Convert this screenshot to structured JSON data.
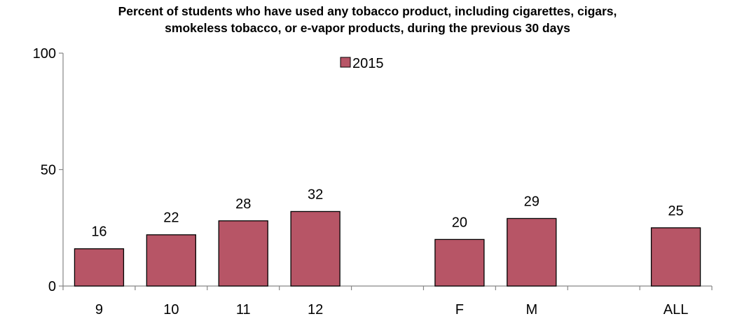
{
  "chart_data": {
    "type": "bar",
    "title_lines": [
      "Percent of students who have used any tobacco product, including cigarettes, cigars,",
      "smokeless tobacco, or e-vapor products, during the previous 30 days"
    ],
    "categories": [
      "9",
      "10",
      "11",
      "12",
      "",
      "F",
      "M",
      "",
      "ALL"
    ],
    "series": [
      {
        "name": "2015",
        "values": [
          16,
          22,
          28,
          32,
          null,
          20,
          29,
          null,
          25
        ],
        "color": "#B75566"
      }
    ],
    "ylim": [
      0,
      100
    ],
    "yticks": [
      0,
      50,
      100
    ],
    "legend_position": "top-center",
    "grid": false
  }
}
